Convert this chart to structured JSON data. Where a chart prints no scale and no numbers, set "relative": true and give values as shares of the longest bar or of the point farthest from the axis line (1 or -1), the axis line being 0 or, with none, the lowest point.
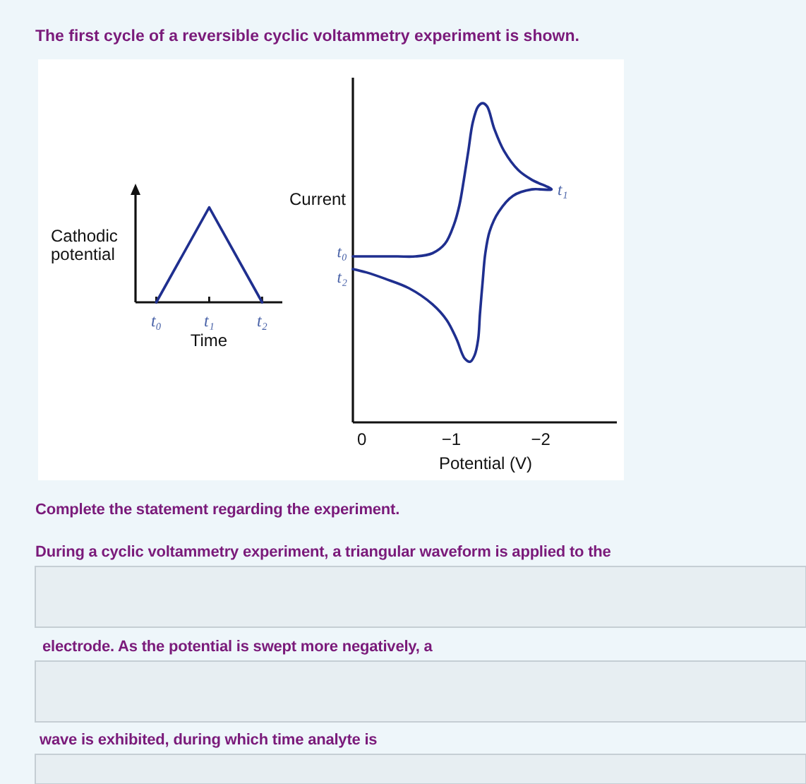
{
  "chart_data": [
    {
      "type": "line",
      "title": "The first cycle of a reversible cyclic voltammetry experiment is shown.",
      "xlabel": "Time",
      "ylabel": "Cathodic potential",
      "relative": true,
      "categories": [
        "t₀",
        "t₁",
        "t₂"
      ],
      "series": [
        {
          "color": "#1f2f8f",
          "values": [
            0,
            1,
            0
          ]
        }
      ]
    },
    {
      "type": "line",
      "xlabel": "Potential (V)",
      "ylabel": "Current",
      "relative": true,
      "xlim": [
        0.1,
        -2.85
      ],
      "xticks": [
        0,
        {
          "value": -1,
          "label": "−1"
        },
        {
          "value": -2,
          "label": "−2"
        }
      ],
      "series": [
        {
          "color": "#1f2f8f",
          "x": [
            0.1,
            -0.2,
            -0.4,
            -0.6,
            -0.79,
            -0.93,
            -1.03,
            -1.09,
            -1.14,
            -1.19,
            -1.24,
            -1.3,
            -1.35,
            -1.4,
            -1.48,
            -1.59,
            -1.75,
            -1.9,
            -2.12,
            -1.9,
            -1.69,
            -1.53,
            -1.43,
            -1.38,
            -1.35,
            -1.32,
            -1.3,
            -1.26,
            -1.21,
            -1.15,
            -1.06,
            -0.95,
            -0.79,
            -0.53,
            -0.26,
            -0.05,
            0.1
          ],
          "values": [
            0.52,
            0.52,
            0.52,
            0.52,
            0.53,
            0.56,
            0.62,
            0.68,
            0.76,
            0.85,
            0.94,
            0.99,
            1,
            0.99,
            0.92,
            0.85,
            0.79,
            0.76,
            0.73,
            0.73,
            0.71,
            0.66,
            0.6,
            0.53,
            0.44,
            0.34,
            0.26,
            0.21,
            0.19,
            0.2,
            0.26,
            0.32,
            0.37,
            0.42,
            0.45,
            0.47,
            0.48
          ]
        }
      ],
      "annotations": [
        "t₀",
        "t₁",
        "t₂"
      ]
    },
    {
      "type": "other",
      "annotations": [
        "Complete the statement regarding the experiment.",
        "During a cyclic voltammetry experiment, a triangular waveform is applied to the",
        "electrode. As the potential is swept more negatively, a",
        "wave is exhibited, during which time analyte is"
      ]
    }
  ]
}
